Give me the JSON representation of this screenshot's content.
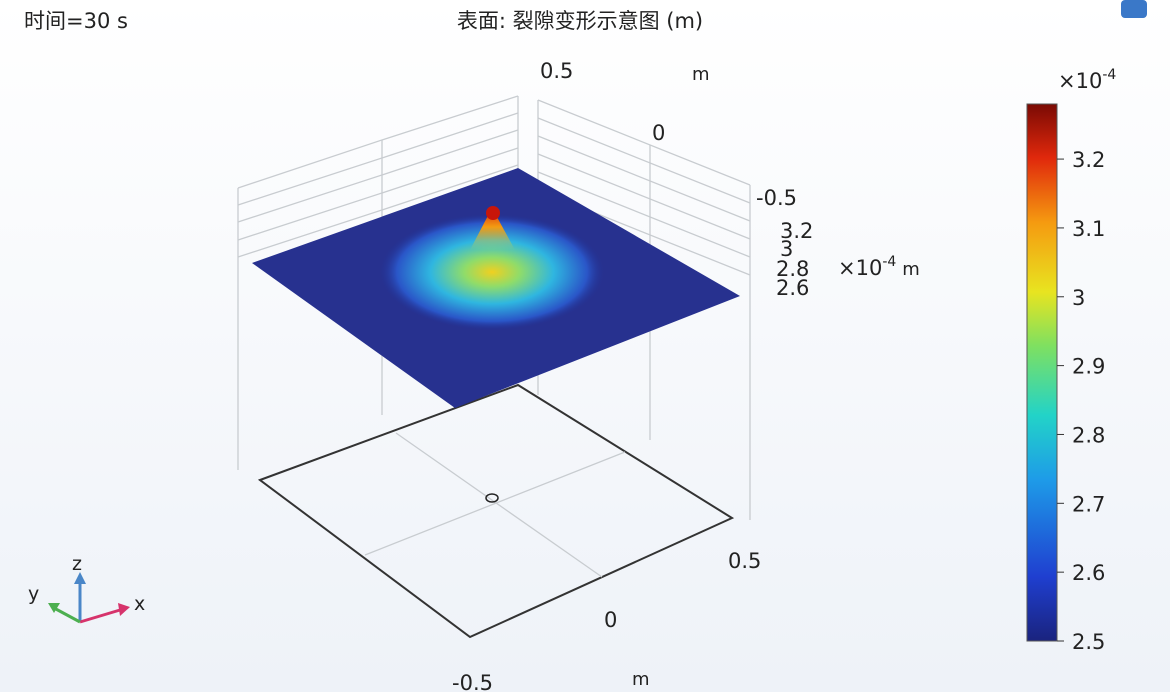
{
  "time_label": "时间=30 s",
  "title": "表面: 裂隙变形示意图 (m)",
  "plot": {
    "x_axis": {
      "ticks": [
        "-0.5",
        "0",
        "0.5"
      ],
      "unit": "m"
    },
    "y_axis": {
      "ticks": [
        "0.5",
        "0",
        "-0.5"
      ],
      "unit": "m"
    },
    "z_axis": {
      "ticks": [
        "3.2",
        "3",
        "2.8",
        "2.6"
      ],
      "multiplier": "×10",
      "exponent": "-4",
      "unit": "m"
    }
  },
  "colorbar": {
    "multiplier": "×10",
    "exponent": "-4",
    "range": [
      2.5,
      3.28
    ],
    "ticks": [
      2.5,
      2.6,
      2.7,
      2.8,
      2.9,
      3,
      3.1,
      3.2
    ]
  },
  "axis_triad": {
    "x": "x",
    "y": "y",
    "z": "z"
  }
}
